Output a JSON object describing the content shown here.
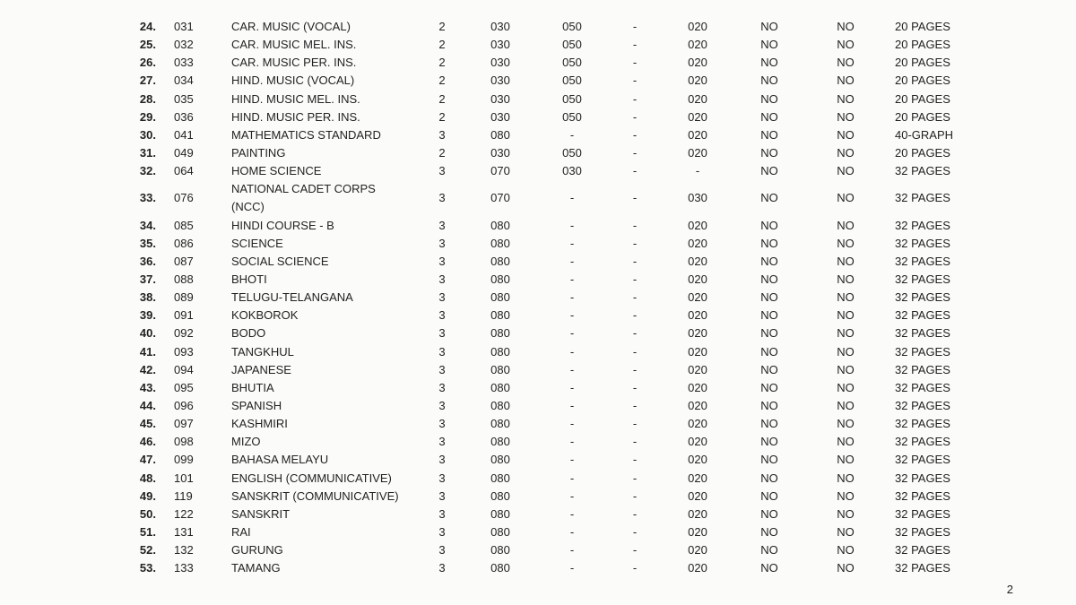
{
  "page_number": "2",
  "text_color": "#222222",
  "background_color": "#fbfbf9",
  "font_size_pt": 10,
  "rows": [
    {
      "num": "24.",
      "code": "031",
      "name": "CAR. MUSIC (VOCAL)",
      "a": "2",
      "b": "030",
      "c": "050",
      "dash": "-",
      "d": "020",
      "e": "NO",
      "f": "NO",
      "pages": "20 PAGES"
    },
    {
      "num": "25.",
      "code": "032",
      "name": "CAR. MUSIC MEL. INS.",
      "a": "2",
      "b": "030",
      "c": "050",
      "dash": "-",
      "d": "020",
      "e": "NO",
      "f": "NO",
      "pages": "20 PAGES"
    },
    {
      "num": "26.",
      "code": "033",
      "name": "CAR. MUSIC PER. INS.",
      "a": "2",
      "b": "030",
      "c": "050",
      "dash": "-",
      "d": "020",
      "e": "NO",
      "f": "NO",
      "pages": "20 PAGES"
    },
    {
      "num": "27.",
      "code": "034",
      "name": "HIND. MUSIC (VOCAL)",
      "a": "2",
      "b": "030",
      "c": "050",
      "dash": "-",
      "d": "020",
      "e": "NO",
      "f": "NO",
      "pages": "20 PAGES"
    },
    {
      "num": "28.",
      "code": "035",
      "name": "HIND. MUSIC MEL. INS.",
      "a": "2",
      "b": "030",
      "c": "050",
      "dash": "-",
      "d": "020",
      "e": "NO",
      "f": "NO",
      "pages": "20 PAGES"
    },
    {
      "num": "29.",
      "code": "036",
      "name": "HIND. MUSIC PER. INS.",
      "a": "2",
      "b": "030",
      "c": "050",
      "dash": "-",
      "d": "020",
      "e": "NO",
      "f": "NO",
      "pages": "20 PAGES"
    },
    {
      "num": "30.",
      "code": "041",
      "name": "MATHEMATICS STANDARD",
      "a": "3",
      "b": "080",
      "c": "-",
      "dash": "-",
      "d": "020",
      "e": "NO",
      "f": "NO",
      "pages": "40-GRAPH"
    },
    {
      "num": "31.",
      "code": "049",
      "name": "PAINTING",
      "a": "2",
      "b": "030",
      "c": "050",
      "dash": "-",
      "d": "020",
      "e": "NO",
      "f": "NO",
      "pages": "20 PAGES"
    },
    {
      "num": "32.",
      "code": "064",
      "name": "HOME SCIENCE",
      "a": "3",
      "b": "070",
      "c": "030",
      "dash": "-",
      "d": "-",
      "e": "NO",
      "f": "NO",
      "pages": "32 PAGES"
    },
    {
      "num": "33.",
      "code": "076",
      "name": "NATIONAL CADET CORPS (NCC)",
      "a": "3",
      "b": "070",
      "c": "-",
      "dash": "-",
      "d": "030",
      "e": "NO",
      "f": "NO",
      "pages": "32 PAGES"
    },
    {
      "num": "34.",
      "code": "085",
      "name": "HINDI COURSE - B",
      "a": "3",
      "b": "080",
      "c": "-",
      "dash": "-",
      "d": "020",
      "e": "NO",
      "f": "NO",
      "pages": "32 PAGES"
    },
    {
      "num": "35.",
      "code": "086",
      "name": "SCIENCE",
      "a": "3",
      "b": "080",
      "c": "-",
      "dash": "-",
      "d": "020",
      "e": "NO",
      "f": "NO",
      "pages": "32 PAGES"
    },
    {
      "num": "36.",
      "code": "087",
      "name": "SOCIAL SCIENCE",
      "a": "3",
      "b": "080",
      "c": "-",
      "dash": "-",
      "d": "020",
      "e": "NO",
      "f": "NO",
      "pages": "32 PAGES"
    },
    {
      "num": "37.",
      "code": "088",
      "name": "BHOTI",
      "a": "3",
      "b": "080",
      "c": "-",
      "dash": "-",
      "d": "020",
      "e": "NO",
      "f": "NO",
      "pages": "32 PAGES"
    },
    {
      "num": "38.",
      "code": "089",
      "name": "TELUGU-TELANGANA",
      "a": "3",
      "b": "080",
      "c": "-",
      "dash": "-",
      "d": "020",
      "e": "NO",
      "f": "NO",
      "pages": "32 PAGES"
    },
    {
      "num": "39.",
      "code": "091",
      "name": "KOKBOROK",
      "a": "3",
      "b": "080",
      "c": "-",
      "dash": "-",
      "d": "020",
      "e": "NO",
      "f": "NO",
      "pages": "32 PAGES"
    },
    {
      "num": "40.",
      "code": "092",
      "name": "BODO",
      "a": "3",
      "b": "080",
      "c": "-",
      "dash": "-",
      "d": "020",
      "e": "NO",
      "f": "NO",
      "pages": "32 PAGES"
    },
    {
      "num": "41.",
      "code": "093",
      "name": "TANGKHUL",
      "a": "3",
      "b": "080",
      "c": "-",
      "dash": "-",
      "d": "020",
      "e": "NO",
      "f": "NO",
      "pages": "32 PAGES"
    },
    {
      "num": "42.",
      "code": "094",
      "name": "JAPANESE",
      "a": "3",
      "b": "080",
      "c": "-",
      "dash": "-",
      "d": "020",
      "e": "NO",
      "f": "NO",
      "pages": "32 PAGES"
    },
    {
      "num": "43.",
      "code": "095",
      "name": "BHUTIA",
      "a": "3",
      "b": "080",
      "c": "-",
      "dash": "-",
      "d": "020",
      "e": "NO",
      "f": "NO",
      "pages": "32 PAGES"
    },
    {
      "num": "44.",
      "code": "096",
      "name": "SPANISH",
      "a": "3",
      "b": "080",
      "c": "-",
      "dash": "-",
      "d": "020",
      "e": "NO",
      "f": "NO",
      "pages": "32 PAGES"
    },
    {
      "num": "45.",
      "code": "097",
      "name": "KASHMIRI",
      "a": "3",
      "b": "080",
      "c": "-",
      "dash": "-",
      "d": "020",
      "e": "NO",
      "f": "NO",
      "pages": "32 PAGES"
    },
    {
      "num": "46.",
      "code": "098",
      "name": "MIZO",
      "a": "3",
      "b": "080",
      "c": "-",
      "dash": "-",
      "d": "020",
      "e": "NO",
      "f": "NO",
      "pages": "32 PAGES"
    },
    {
      "num": "47.",
      "code": "099",
      "name": "BAHASA MELAYU",
      "a": "3",
      "b": "080",
      "c": "-",
      "dash": "-",
      "d": "020",
      "e": "NO",
      "f": "NO",
      "pages": "32 PAGES"
    },
    {
      "num": "48.",
      "code": "101",
      "name": "ENGLISH (COMMUNICATIVE)",
      "a": "3",
      "b": "080",
      "c": "-",
      "dash": "-",
      "d": "020",
      "e": "NO",
      "f": "NO",
      "pages": "32 PAGES"
    },
    {
      "num": "49.",
      "code": "119",
      "name": "SANSKRIT (COMMUNICATIVE)",
      "a": "3",
      "b": "080",
      "c": "-",
      "dash": "-",
      "d": "020",
      "e": "NO",
      "f": "NO",
      "pages": "32 PAGES"
    },
    {
      "num": "50.",
      "code": "122",
      "name": "SANSKRIT",
      "a": "3",
      "b": "080",
      "c": "-",
      "dash": "-",
      "d": "020",
      "e": "NO",
      "f": "NO",
      "pages": "32 PAGES"
    },
    {
      "num": "51.",
      "code": "131",
      "name": "RAI",
      "a": "3",
      "b": "080",
      "c": "-",
      "dash": "-",
      "d": "020",
      "e": "NO",
      "f": "NO",
      "pages": "32 PAGES"
    },
    {
      "num": "52.",
      "code": "132",
      "name": "GURUNG",
      "a": "3",
      "b": "080",
      "c": "-",
      "dash": "-",
      "d": "020",
      "e": "NO",
      "f": "NO",
      "pages": "32 PAGES"
    },
    {
      "num": "53.",
      "code": "133",
      "name": "TAMANG",
      "a": "3",
      "b": "080",
      "c": "-",
      "dash": "-",
      "d": "020",
      "e": "NO",
      "f": "NO",
      "pages": "32 PAGES"
    }
  ]
}
